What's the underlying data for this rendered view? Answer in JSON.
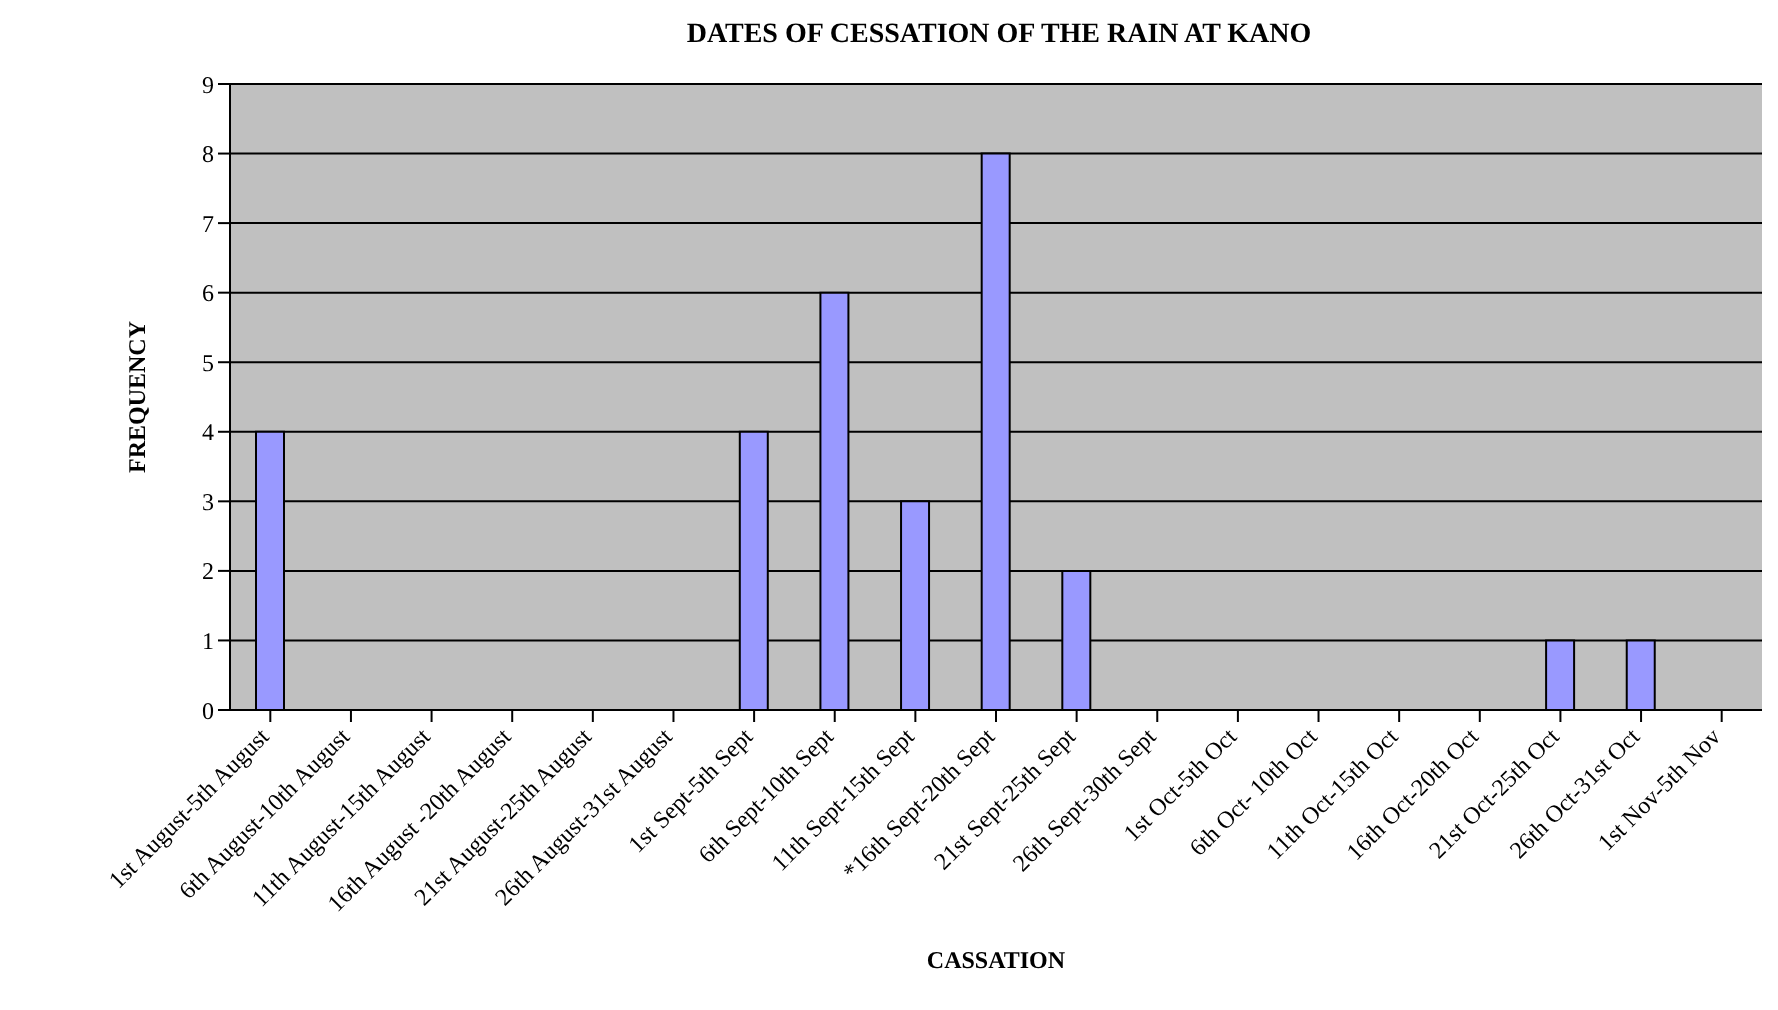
{
  "chart_data": {
    "type": "bar",
    "title": "DATES OF CESSATION OF THE RAIN AT KANO",
    "xlabel": "CASSATION",
    "ylabel": "FREQUENCY",
    "categories": [
      "1st August-5th August",
      "6th August-10th August",
      "11th August-15th August",
      "16th August -20th August",
      "21st August-25th August",
      "26th August-31st August",
      "1st Sept-5th Sept",
      "6th Sept-10th Sept",
      "11th Sept-15th Sept",
      "*16th Sept-20th Sept",
      "21st Sept-25th Sept",
      "26th Sept-30th Sept",
      "1st Oct-5th Oct",
      "6th Oct- 10th Oct",
      "11th Oct-15th Oct",
      "16th Oct-20th Oct",
      "21st Oct-25th Oct",
      "26th Oct-31st Oct",
      "1st Nov-5th Nov"
    ],
    "values": [
      4,
      0,
      0,
      0,
      0,
      0,
      4,
      6,
      3,
      8,
      2,
      0,
      0,
      0,
      0,
      0,
      1,
      1,
      0
    ],
    "color": "#9999ff",
    "ylim": [
      0,
      9
    ],
    "yticks": [
      0,
      1,
      2,
      3,
      4,
      5,
      6,
      7,
      8,
      9
    ],
    "grid": "y",
    "legend": false
  }
}
